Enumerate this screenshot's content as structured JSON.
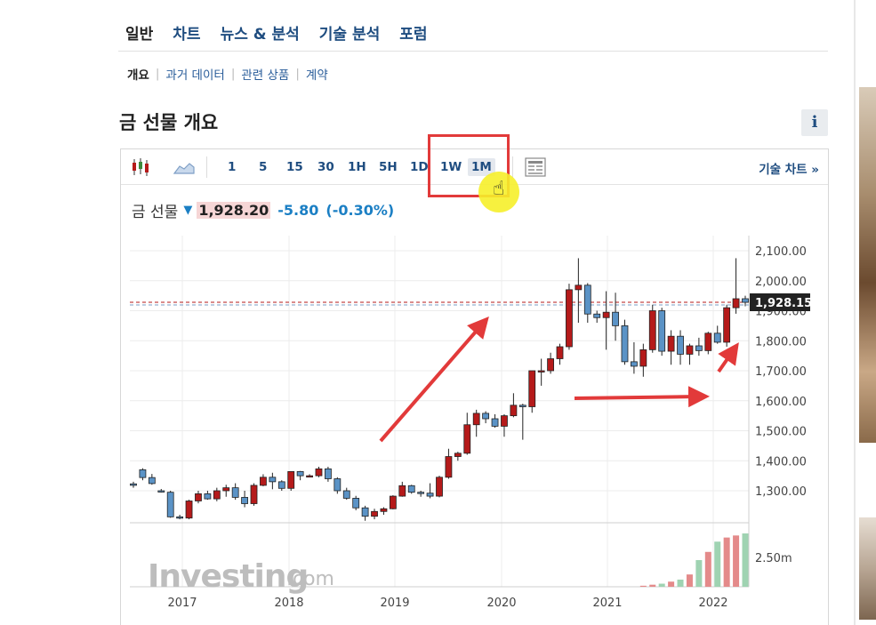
{
  "nav": {
    "main_tabs": [
      "일반",
      "차트",
      "뉴스 & 분석",
      "기술 분석",
      "포럼"
    ],
    "sub_tabs": [
      "개요",
      "과거 데이터",
      "관련 상품",
      "계약"
    ]
  },
  "page_title": "금 선물 개요",
  "info_label": "i",
  "toolbar": {
    "timeframes": [
      "1",
      "5",
      "15",
      "30",
      "1H",
      "5H",
      "1D",
      "1W",
      "1M"
    ],
    "selected_timeframe": "1M",
    "tech_chart_link": "기술 차트 »"
  },
  "quote": {
    "name": "금 선물",
    "last": "1,928.20",
    "change": "-5.80",
    "change_pct": "(-0.30%)",
    "direction": "down"
  },
  "colors": {
    "up": "#b51a1a",
    "down": "#5b93c6",
    "accent": "#1f4d80",
    "annotation": "#e23a3a"
  },
  "chart_data": {
    "type": "candlestick",
    "x_ticks": [
      "2017",
      "2018",
      "2019",
      "2020",
      "2021",
      "2022"
    ],
    "y_ticks": [
      "2,100.00",
      "2,000.00",
      "1,900.00",
      "1,800.00",
      "1,700.00",
      "1,600.00",
      "1,500.00",
      "1,400.00",
      "1,300.00"
    ],
    "y_range": [
      1200,
      2150
    ],
    "current_price_label": "1,928.15",
    "current_price": 1928.15,
    "volume_label": "2.50m",
    "watermark": "Investing.com",
    "candles": [
      {
        "o": 1323,
        "h": 1330,
        "l": 1310,
        "c": 1318
      },
      {
        "o": 1370,
        "h": 1375,
        "l": 1335,
        "c": 1344
      },
      {
        "o": 1344,
        "h": 1356,
        "l": 1320,
        "c": 1324
      },
      {
        "o": 1300,
        "h": 1306,
        "l": 1294,
        "c": 1298
      },
      {
        "o": 1295,
        "h": 1300,
        "l": 1210,
        "c": 1213
      },
      {
        "o": 1213,
        "h": 1220,
        "l": 1205,
        "c": 1209
      },
      {
        "o": 1209,
        "h": 1270,
        "l": 1205,
        "c": 1266
      },
      {
        "o": 1266,
        "h": 1300,
        "l": 1258,
        "c": 1290
      },
      {
        "o": 1290,
        "h": 1300,
        "l": 1270,
        "c": 1273
      },
      {
        "o": 1273,
        "h": 1310,
        "l": 1265,
        "c": 1300
      },
      {
        "o": 1300,
        "h": 1320,
        "l": 1280,
        "c": 1310
      },
      {
        "o": 1310,
        "h": 1325,
        "l": 1270,
        "c": 1278
      },
      {
        "o": 1278,
        "h": 1300,
        "l": 1245,
        "c": 1257
      },
      {
        "o": 1257,
        "h": 1325,
        "l": 1250,
        "c": 1318
      },
      {
        "o": 1318,
        "h": 1355,
        "l": 1315,
        "c": 1345
      },
      {
        "o": 1345,
        "h": 1360,
        "l": 1305,
        "c": 1330
      },
      {
        "o": 1330,
        "h": 1335,
        "l": 1300,
        "c": 1308
      },
      {
        "o": 1308,
        "h": 1365,
        "l": 1300,
        "c": 1364
      },
      {
        "o": 1364,
        "h": 1366,
        "l": 1335,
        "c": 1350
      },
      {
        "o": 1350,
        "h": 1355,
        "l": 1345,
        "c": 1350
      },
      {
        "o": 1350,
        "h": 1380,
        "l": 1345,
        "c": 1373
      },
      {
        "o": 1373,
        "h": 1380,
        "l": 1330,
        "c": 1340
      },
      {
        "o": 1340,
        "h": 1345,
        "l": 1290,
        "c": 1300
      },
      {
        "o": 1300,
        "h": 1310,
        "l": 1270,
        "c": 1275
      },
      {
        "o": 1275,
        "h": 1283,
        "l": 1235,
        "c": 1243
      },
      {
        "o": 1243,
        "h": 1250,
        "l": 1200,
        "c": 1215
      },
      {
        "o": 1215,
        "h": 1240,
        "l": 1205,
        "c": 1231
      },
      {
        "o": 1231,
        "h": 1245,
        "l": 1220,
        "c": 1240
      },
      {
        "o": 1240,
        "h": 1285,
        "l": 1238,
        "c": 1282
      },
      {
        "o": 1282,
        "h": 1330,
        "l": 1280,
        "c": 1317
      },
      {
        "o": 1317,
        "h": 1320,
        "l": 1290,
        "c": 1295
      },
      {
        "o": 1295,
        "h": 1300,
        "l": 1280,
        "c": 1292
      },
      {
        "o": 1292,
        "h": 1325,
        "l": 1275,
        "c": 1282
      },
      {
        "o": 1282,
        "h": 1350,
        "l": 1278,
        "c": 1345
      },
      {
        "o": 1345,
        "h": 1440,
        "l": 1340,
        "c": 1414
      },
      {
        "o": 1414,
        "h": 1430,
        "l": 1400,
        "c": 1425
      },
      {
        "o": 1425,
        "h": 1560,
        "l": 1420,
        "c": 1520
      },
      {
        "o": 1520,
        "h": 1570,
        "l": 1480,
        "c": 1558
      },
      {
        "o": 1558,
        "h": 1565,
        "l": 1525,
        "c": 1540
      },
      {
        "o": 1540,
        "h": 1555,
        "l": 1510,
        "c": 1515
      },
      {
        "o": 1515,
        "h": 1555,
        "l": 1480,
        "c": 1550
      },
      {
        "o": 1550,
        "h": 1625,
        "l": 1545,
        "c": 1585
      },
      {
        "o": 1585,
        "h": 1590,
        "l": 1470,
        "c": 1580
      },
      {
        "o": 1580,
        "h": 1700,
        "l": 1560,
        "c": 1700
      },
      {
        "o": 1700,
        "h": 1740,
        "l": 1650,
        "c": 1700
      },
      {
        "o": 1700,
        "h": 1760,
        "l": 1690,
        "c": 1740
      },
      {
        "o": 1740,
        "h": 1790,
        "l": 1720,
        "c": 1780
      },
      {
        "o": 1780,
        "h": 1990,
        "l": 1770,
        "c": 1970
      },
      {
        "o": 1970,
        "h": 2075,
        "l": 1860,
        "c": 1985
      },
      {
        "o": 1985,
        "h": 1992,
        "l": 1860,
        "c": 1889
      },
      {
        "o": 1889,
        "h": 1900,
        "l": 1860,
        "c": 1877
      },
      {
        "o": 1877,
        "h": 1965,
        "l": 1770,
        "c": 1895
      },
      {
        "o": 1895,
        "h": 1960,
        "l": 1800,
        "c": 1850
      },
      {
        "o": 1850,
        "h": 1870,
        "l": 1720,
        "c": 1730
      },
      {
        "o": 1730,
        "h": 1795,
        "l": 1690,
        "c": 1715
      },
      {
        "o": 1715,
        "h": 1790,
        "l": 1680,
        "c": 1770
      },
      {
        "o": 1770,
        "h": 1920,
        "l": 1760,
        "c": 1900
      },
      {
        "o": 1900,
        "h": 1910,
        "l": 1750,
        "c": 1765
      },
      {
        "o": 1765,
        "h": 1835,
        "l": 1720,
        "c": 1815
      },
      {
        "o": 1815,
        "h": 1835,
        "l": 1720,
        "c": 1755
      },
      {
        "o": 1755,
        "h": 1790,
        "l": 1720,
        "c": 1783
      },
      {
        "o": 1783,
        "h": 1810,
        "l": 1750,
        "c": 1767
      },
      {
        "o": 1767,
        "h": 1830,
        "l": 1755,
        "c": 1825
      },
      {
        "o": 1825,
        "h": 1850,
        "l": 1790,
        "c": 1795
      },
      {
        "o": 1795,
        "h": 1920,
        "l": 1780,
        "c": 1910
      },
      {
        "o": 1910,
        "h": 2075,
        "l": 1890,
        "c": 1940
      },
      {
        "o": 1940,
        "h": 1950,
        "l": 1915,
        "c": 1928
      }
    ],
    "volume": [
      0,
      0,
      0,
      0,
      0,
      0,
      0,
      0,
      0,
      0,
      0,
      0,
      0,
      0,
      0,
      0,
      0,
      0,
      0,
      0,
      0,
      0,
      0,
      0,
      0,
      0,
      0,
      0,
      0,
      0,
      0,
      0,
      0,
      0,
      0,
      0,
      0,
      0,
      0,
      0,
      0,
      0,
      0,
      0,
      0,
      0,
      0,
      0,
      0,
      0,
      0,
      0,
      0,
      0,
      0,
      0.05,
      0.1,
      0.15,
      0.25,
      0.35,
      0.6,
      1.3,
      1.7,
      2.2,
      2.4,
      2.5,
      2.6
    ]
  }
}
